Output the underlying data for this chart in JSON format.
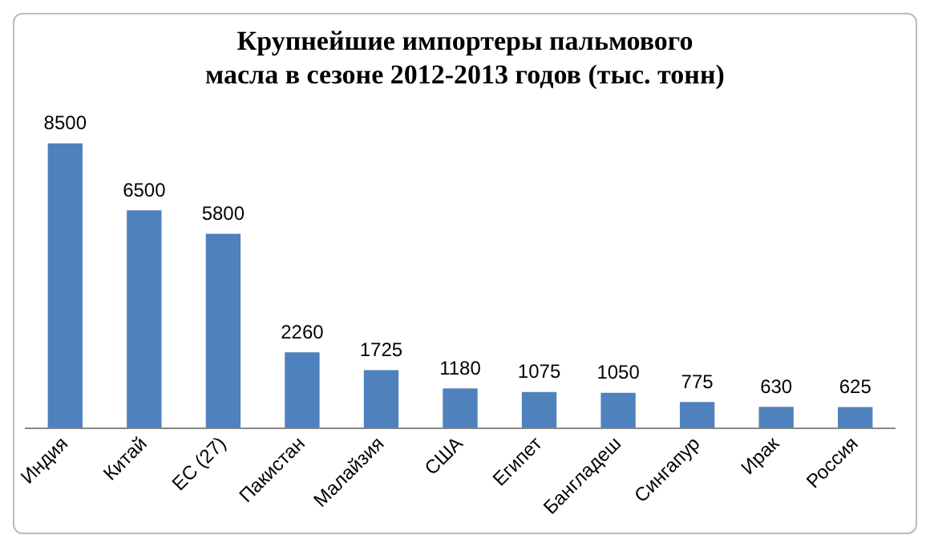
{
  "chart_data": {
    "type": "bar",
    "title": "Крупнейшие импортеры пальмового масла в сезоне 2012-2013 годов (тыс. тонн)",
    "categories": [
      "Индия",
      "Китай",
      "ЕС (27)",
      "Пакистан",
      "Малайзия",
      "США",
      "Египет",
      "Бангладеш",
      "Сингапур",
      "Ирак",
      "Россия"
    ],
    "values": [
      8500,
      6500,
      5800,
      2260,
      1725,
      1180,
      1075,
      1050,
      775,
      630,
      625
    ],
    "color": "#4f81bd",
    "data_labels": true,
    "grid": false,
    "legend": false
  }
}
